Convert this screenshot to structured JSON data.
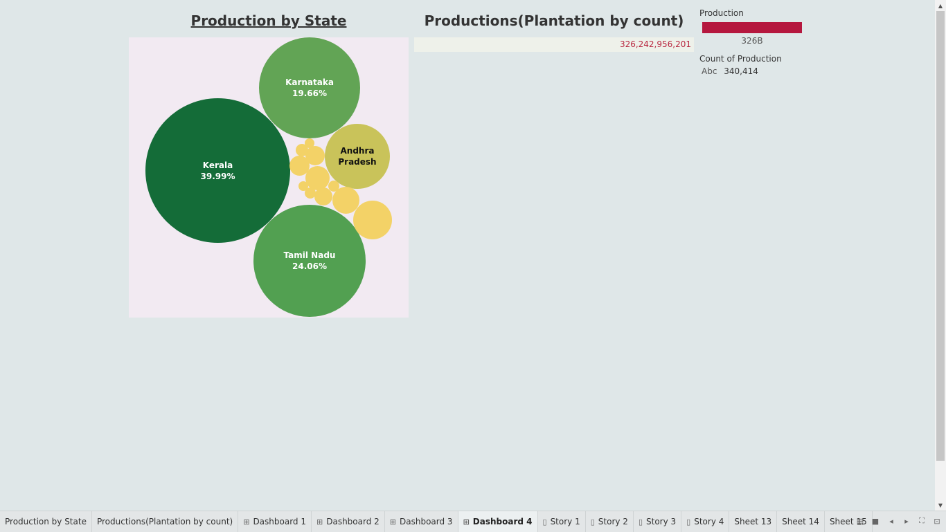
{
  "titles": {
    "left": "Production by State",
    "right": "Productions(Plantation by count)"
  },
  "bubbles": [
    {
      "name": "Kerala",
      "pct": "39.99%",
      "color": "#146c38",
      "text_color": "#ffffff"
    },
    {
      "name": "Karnataka",
      "pct": "19.66%",
      "color": "#62a455",
      "text_color": "#ffffff"
    },
    {
      "name": "Tamil Nadu",
      "pct": "24.06%",
      "color": "#52a051",
      "text_color": "#ffffff"
    },
    {
      "name": "Andhra Pradesh",
      "pct": "",
      "color": "#c9c35a",
      "text_color": "#111111"
    },
    {
      "name": "",
      "pct": "",
      "color": "#f3d267",
      "text_color": "#111111"
    }
  ],
  "value_bar": {
    "value": "326,242,956,201"
  },
  "legend": {
    "production_title": "Production",
    "production_caption": "326B",
    "production_color": "#b5173e",
    "count_title": "Count of Production",
    "count_abc": "Abc",
    "count_value": "340,414"
  },
  "tabs": [
    {
      "label": "Production by State",
      "icon": "",
      "active": false
    },
    {
      "label": "Productions(Plantation by count)",
      "icon": "",
      "active": false
    },
    {
      "label": "Dashboard 1",
      "icon": "dashboard-icon",
      "active": false
    },
    {
      "label": "Dashboard 2",
      "icon": "dashboard-icon",
      "active": false
    },
    {
      "label": "Dashboard 3",
      "icon": "dashboard-icon",
      "active": false
    },
    {
      "label": "Dashboard 4",
      "icon": "dashboard-icon",
      "active": true
    },
    {
      "label": "Story 1",
      "icon": "story-icon",
      "active": false
    },
    {
      "label": "Story 2",
      "icon": "story-icon",
      "active": false
    },
    {
      "label": "Story 3",
      "icon": "story-icon",
      "active": false
    },
    {
      "label": "Story 4",
      "icon": "story-icon",
      "active": false
    },
    {
      "label": "Sheet 13",
      "icon": "",
      "active": false
    },
    {
      "label": "Sheet 14",
      "icon": "",
      "active": false
    },
    {
      "label": "Sheet 15",
      "icon": "",
      "active": false
    }
  ],
  "nav_icons": [
    "show-sheet-sorter-icon",
    "show-filmstrip-icon",
    "scroll-left-icon",
    "scroll-right-icon",
    "fit-to-window-icon",
    "presentation-mode-icon"
  ]
}
